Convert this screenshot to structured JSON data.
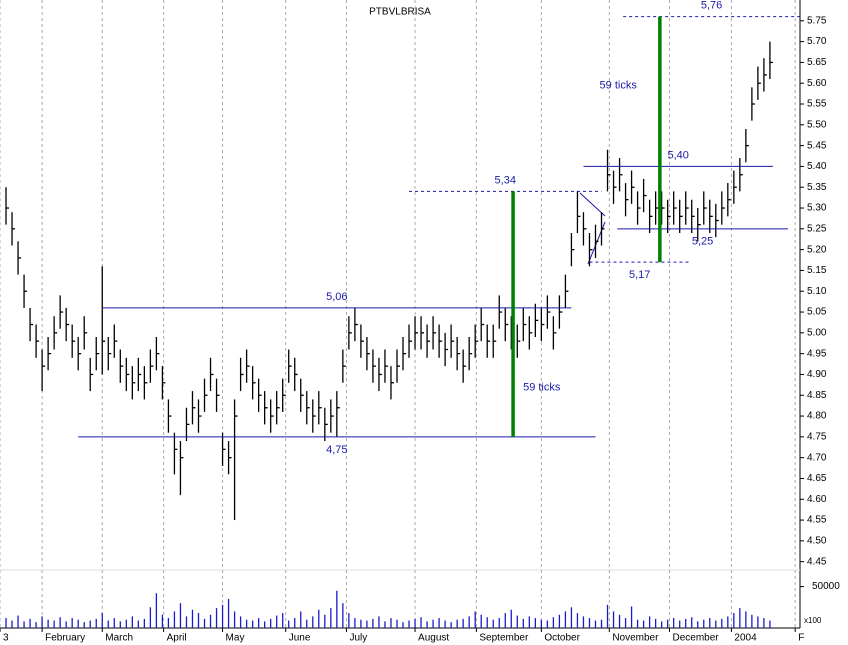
{
  "chart_data": {
    "type": "ohlc",
    "title": "PTBVLBRISA",
    "color": "#000000",
    "xlim": [
      0,
      133
    ],
    "xticks": [
      {
        "value": 0,
        "label": "3"
      },
      {
        "value": 7,
        "label": "February"
      },
      {
        "value": 17,
        "label": "March"
      },
      {
        "value": 27.2,
        "label": "April"
      },
      {
        "value": 37,
        "label": "May"
      },
      {
        "value": 47.5,
        "label": "June"
      },
      {
        "value": 57.6,
        "label": "July"
      },
      {
        "value": 69,
        "label": "August"
      },
      {
        "value": 79.2,
        "label": "September"
      },
      {
        "value": 90,
        "label": "October"
      },
      {
        "value": 101.3,
        "label": "November"
      },
      {
        "value": 111.3,
        "label": "December"
      },
      {
        "value": 121.6,
        "label": "2004"
      },
      {
        "value": 132.2,
        "label": "F"
      }
    ],
    "grid": true,
    "ylim": [
      4.43,
      5.8
    ],
    "yticks": [
      {
        "value": 4.45,
        "label": "4.45"
      },
      {
        "value": 4.5,
        "label": "4.50"
      },
      {
        "value": 4.55,
        "label": "4.55"
      },
      {
        "value": 4.6,
        "label": "4.60"
      },
      {
        "value": 4.65,
        "label": "4.65"
      },
      {
        "value": 4.7,
        "label": "4.70"
      },
      {
        "value": 4.75,
        "label": "4.75"
      },
      {
        "value": 4.8,
        "label": "4.80"
      },
      {
        "value": 4.85,
        "label": "4.85"
      },
      {
        "value": 4.9,
        "label": "4.90"
      },
      {
        "value": 4.95,
        "label": "4.95"
      },
      {
        "value": 5.0,
        "label": "5.00"
      },
      {
        "value": 5.05,
        "label": "5.05"
      },
      {
        "value": 5.1,
        "label": "5.10"
      },
      {
        "value": 5.15,
        "label": "5.15"
      },
      {
        "value": 5.2,
        "label": "5.20"
      },
      {
        "value": 5.25,
        "label": "5.25"
      },
      {
        "value": 5.3,
        "label": "5.30"
      },
      {
        "value": 5.35,
        "label": "5.35"
      },
      {
        "value": 5.4,
        "label": "5.40"
      },
      {
        "value": 5.45,
        "label": "5.45"
      },
      {
        "value": 5.5,
        "label": "5.50"
      },
      {
        "value": 5.55,
        "label": "5.55"
      },
      {
        "value": 5.6,
        "label": "5.60"
      },
      {
        "value": 5.65,
        "label": "5.65"
      },
      {
        "value": 5.7,
        "label": "5.70"
      },
      {
        "value": 5.75,
        "label": "5.75"
      }
    ],
    "high": [
      5.35,
      5.29,
      5.22,
      5.14,
      5.06,
      5.02,
      4.96,
      4.99,
      5.04,
      5.09,
      5.06,
      5.02,
      4.99,
      5.04,
      4.94,
      4.99,
      5.16,
      4.99,
      5.02,
      4.96,
      4.94,
      4.92,
      4.94,
      4.92,
      4.96,
      4.99,
      4.92,
      4.84,
      4.76,
      4.74,
      4.82,
      4.86,
      4.84,
      4.89,
      4.94,
      4.89,
      4.76,
      4.74,
      4.84,
      4.94,
      4.96,
      4.92,
      4.89,
      4.86,
      4.84,
      4.86,
      4.89,
      4.96,
      4.94,
      4.89,
      4.86,
      4.84,
      4.86,
      4.82,
      4.84,
      4.86,
      4.96,
      5.04,
      5.06,
      5.02,
      4.99,
      4.96,
      4.94,
      4.96,
      4.92,
      4.96,
      4.99,
      5.02,
      5.04,
      5.04,
      5.02,
      5.04,
      5.02,
      5.0,
      5.02,
      4.99,
      4.96,
      4.99,
      5.02,
      5.06,
      5.02,
      5.02,
      5.09,
      5.06,
      5.04,
      5.02,
      5.06,
      5.04,
      5.07,
      5.06,
      5.09,
      5.04,
      5.09,
      5.14,
      5.24,
      5.34,
      5.29,
      5.24,
      5.26,
      5.29,
      5.44,
      5.39,
      5.42,
      5.36,
      5.39,
      5.34,
      5.37,
      5.32,
      5.34,
      5.34,
      5.32,
      5.34,
      5.32,
      5.34,
      5.32,
      5.3,
      5.34,
      5.32,
      5.31,
      5.34,
      5.36,
      5.39,
      5.42,
      5.49,
      5.59,
      5.64,
      5.66,
      5.7
    ],
    "low": [
      5.26,
      5.21,
      5.14,
      5.06,
      4.98,
      4.94,
      4.86,
      4.91,
      4.96,
      5.01,
      4.98,
      4.94,
      4.91,
      4.96,
      4.86,
      4.91,
      4.9,
      4.91,
      4.94,
      4.88,
      4.86,
      4.84,
      4.86,
      4.84,
      4.88,
      4.91,
      4.84,
      4.76,
      4.66,
      4.61,
      4.74,
      4.78,
      4.76,
      4.81,
      4.86,
      4.81,
      4.68,
      4.66,
      4.55,
      4.86,
      4.88,
      4.84,
      4.81,
      4.78,
      4.76,
      4.78,
      4.81,
      4.88,
      4.86,
      4.81,
      4.78,
      4.76,
      4.78,
      4.74,
      4.76,
      4.75,
      4.88,
      4.96,
      4.98,
      4.94,
      4.91,
      4.88,
      4.86,
      4.88,
      4.84,
      4.88,
      4.91,
      4.94,
      4.96,
      4.96,
      4.94,
      4.96,
      4.94,
      4.92,
      4.94,
      4.91,
      4.88,
      4.91,
      4.94,
      4.98,
      4.94,
      4.94,
      5.01,
      4.98,
      4.96,
      4.94,
      4.98,
      4.96,
      4.99,
      4.98,
      5.01,
      4.96,
      5.01,
      5.06,
      5.16,
      5.24,
      5.21,
      5.16,
      5.18,
      5.21,
      5.34,
      5.31,
      5.34,
      5.28,
      5.31,
      5.26,
      5.29,
      5.24,
      5.26,
      5.26,
      5.24,
      5.26,
      5.24,
      5.26,
      5.24,
      5.22,
      5.26,
      5.24,
      5.23,
      5.26,
      5.28,
      5.31,
      5.34,
      5.41,
      5.51,
      5.56,
      5.58,
      5.61
    ],
    "close": [
      5.3,
      5.25,
      5.18,
      5.1,
      5.02,
      4.98,
      4.92,
      4.95,
      5.0,
      5.05,
      5.02,
      4.98,
      4.95,
      5.0,
      4.9,
      4.95,
      4.98,
      4.95,
      4.98,
      4.92,
      4.9,
      4.88,
      4.9,
      4.88,
      4.92,
      4.95,
      4.88,
      4.8,
      4.72,
      4.7,
      4.78,
      4.82,
      4.8,
      4.85,
      4.9,
      4.85,
      4.72,
      4.7,
      4.8,
      4.9,
      4.92,
      4.88,
      4.85,
      4.82,
      4.8,
      4.82,
      4.85,
      4.92,
      4.9,
      4.85,
      4.82,
      4.8,
      4.82,
      4.78,
      4.8,
      4.82,
      4.92,
      5.0,
      5.02,
      4.98,
      4.95,
      4.92,
      4.9,
      4.92,
      4.88,
      4.92,
      4.95,
      4.98,
      5.0,
      5.0,
      4.98,
      5.0,
      4.98,
      4.96,
      4.98,
      4.95,
      4.92,
      4.95,
      4.98,
      5.02,
      4.98,
      4.98,
      5.05,
      5.02,
      5.0,
      4.98,
      5.02,
      5.0,
      5.03,
      5.02,
      5.05,
      5.0,
      5.05,
      5.1,
      5.2,
      5.28,
      5.25,
      5.2,
      5.22,
      5.25,
      5.38,
      5.35,
      5.38,
      5.32,
      5.35,
      5.3,
      5.33,
      5.28,
      5.3,
      5.3,
      5.28,
      5.3,
      5.28,
      5.3,
      5.28,
      5.26,
      5.3,
      5.28,
      5.27,
      5.3,
      5.32,
      5.35,
      5.38,
      5.45,
      5.55,
      5.6,
      5.62,
      5.65
    ],
    "volume": {
      "color": "#1a1acc",
      "ylim": [
        0,
        70000
      ],
      "yticks": [
        50000
      ],
      "unit_label": "x100",
      "values": [
        12000,
        9000,
        15000,
        8000,
        11000,
        7000,
        14000,
        10000,
        9000,
        13000,
        8000,
        12000,
        10000,
        7000,
        9000,
        11000,
        18000,
        9000,
        12000,
        8000,
        10000,
        14000,
        9000,
        11000,
        25000,
        42000,
        16000,
        12000,
        20000,
        30000,
        14000,
        22000,
        18000,
        11000,
        16000,
        24000,
        28000,
        35000,
        20000,
        14000,
        10000,
        9000,
        12000,
        8000,
        11000,
        15000,
        18000,
        9000,
        12000,
        20000,
        10000,
        14000,
        22000,
        16000,
        24000,
        45000,
        30000,
        18000,
        12000,
        10000,
        9000,
        11000,
        14000,
        8000,
        12000,
        10000,
        7000,
        9000,
        11000,
        13000,
        8000,
        10000,
        12000,
        9000,
        7000,
        10000,
        11000,
        14000,
        20000,
        16000,
        13000,
        10000,
        12000,
        18000,
        22000,
        15000,
        11000,
        14000,
        12000,
        10000,
        9000,
        13000,
        16000,
        20000,
        25000,
        18000,
        14000,
        12000,
        9000,
        10000,
        28000,
        20000,
        16000,
        12000,
        26000,
        10000,
        9000,
        14000,
        11000,
        8000,
        10000,
        12000,
        9000,
        11000,
        13000,
        8000,
        10000,
        12000,
        9000,
        11000,
        14000,
        18000,
        24000,
        20000,
        16000,
        14000,
        12000,
        9000
      ]
    },
    "levels": [
      {
        "label": "5,06",
        "value": 5.06,
        "x": [
          17,
          95
        ],
        "style": "solid",
        "label_pos": "above"
      },
      {
        "label": "4,75",
        "value": 4.75,
        "x": [
          13,
          99
        ],
        "style": "solid",
        "label_pos": "below"
      },
      {
        "label": "5,34",
        "value": 5.34,
        "x": [
          68,
          100
        ],
        "style": "dashed",
        "label_pos": "above"
      },
      {
        "label": "5,40",
        "value": 5.4,
        "x": [
          97,
          128.5
        ],
        "style": "solid",
        "label_pos": "above"
      },
      {
        "label": "5,25",
        "value": 5.25,
        "x": [
          102.6,
          131
        ],
        "style": "solid",
        "label_pos": "below"
      },
      {
        "label": "5,17",
        "value": 5.17,
        "x": [
          98,
          114.7
        ],
        "style": "dashed",
        "label_pos": "below"
      },
      {
        "label": "5,76",
        "value": 5.76,
        "x": [
          103.6,
          133
        ],
        "style": "dashed",
        "label_pos": "above"
      }
    ],
    "spans": [
      {
        "label": "59 ticks",
        "x": 85.3,
        "from": 4.75,
        "to": 5.34,
        "color": "#008000",
        "label_side": "right"
      },
      {
        "label": "59 ticks",
        "x": 109.7,
        "from": 5.17,
        "to": 5.76,
        "color": "#008000",
        "label_side": "left"
      }
    ]
  }
}
